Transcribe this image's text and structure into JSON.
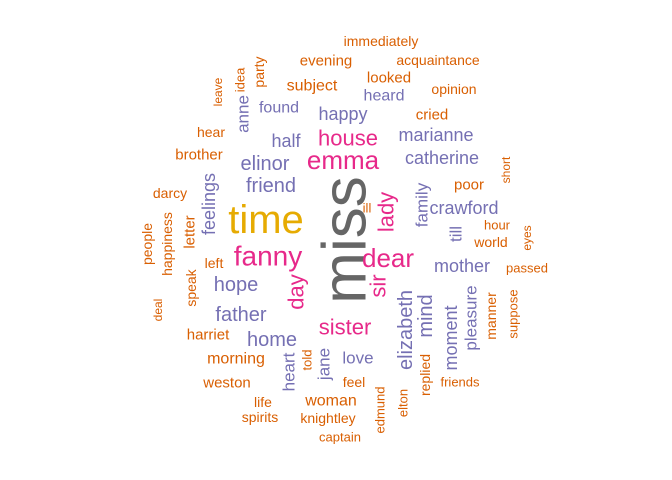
{
  "chart_data": {
    "type": "wordcloud",
    "title": "",
    "palette": {
      "gray": "#666666",
      "gold": "#E6AB02",
      "pink": "#E7298A",
      "purple": "#7570B3",
      "orange": "#D95F02"
    },
    "words": [
      {
        "text": "miss",
        "group": "gray"
      },
      {
        "text": "time",
        "group": "gold"
      },
      {
        "text": "fanny",
        "group": "pink"
      },
      {
        "text": "emma",
        "group": "pink"
      },
      {
        "text": "dear",
        "group": "pink"
      },
      {
        "text": "house",
        "group": "pink"
      },
      {
        "text": "lady",
        "group": "pink"
      },
      {
        "text": "sister",
        "group": "pink"
      },
      {
        "text": "day",
        "group": "pink"
      },
      {
        "text": "sir",
        "group": "pink"
      },
      {
        "text": "elinor",
        "group": "purple"
      },
      {
        "text": "catherine",
        "group": "purple"
      },
      {
        "text": "friend",
        "group": "purple"
      },
      {
        "text": "hope",
        "group": "purple"
      },
      {
        "text": "father",
        "group": "purple"
      },
      {
        "text": "home",
        "group": "purple"
      },
      {
        "text": "elizabeth",
        "group": "purple"
      },
      {
        "text": "mind",
        "group": "purple"
      },
      {
        "text": "mother",
        "group": "purple"
      },
      {
        "text": "crawford",
        "group": "purple"
      },
      {
        "text": "marianne",
        "group": "purple"
      },
      {
        "text": "happy",
        "group": "purple"
      },
      {
        "text": "half",
        "group": "purple"
      },
      {
        "text": "found",
        "group": "purple"
      },
      {
        "text": "heard",
        "group": "purple"
      },
      {
        "text": "family",
        "group": "purple"
      },
      {
        "text": "moment",
        "group": "purple"
      },
      {
        "text": "feelings",
        "group": "purple"
      },
      {
        "text": "love",
        "group": "purple"
      },
      {
        "text": "jane",
        "group": "purple"
      },
      {
        "text": "heart",
        "group": "purple"
      },
      {
        "text": "anne",
        "group": "purple"
      },
      {
        "text": "till",
        "group": "purple"
      },
      {
        "text": "pleasure",
        "group": "purple"
      },
      {
        "text": "immediately",
        "group": "orange"
      },
      {
        "text": "evening",
        "group": "orange"
      },
      {
        "text": "acquaintance",
        "group": "orange"
      },
      {
        "text": "party",
        "group": "orange"
      },
      {
        "text": "idea",
        "group": "orange"
      },
      {
        "text": "leave",
        "group": "orange"
      },
      {
        "text": "subject",
        "group": "orange"
      },
      {
        "text": "looked",
        "group": "orange"
      },
      {
        "text": "opinion",
        "group": "orange"
      },
      {
        "text": "cried",
        "group": "orange"
      },
      {
        "text": "hear",
        "group": "orange"
      },
      {
        "text": "brother",
        "group": "orange"
      },
      {
        "text": "short",
        "group": "orange"
      },
      {
        "text": "poor",
        "group": "orange"
      },
      {
        "text": "darcy",
        "group": "orange"
      },
      {
        "text": "ill",
        "group": "orange"
      },
      {
        "text": "hour",
        "group": "orange"
      },
      {
        "text": "people",
        "group": "orange"
      },
      {
        "text": "happiness",
        "group": "orange"
      },
      {
        "text": "letter",
        "group": "orange"
      },
      {
        "text": "world",
        "group": "orange"
      },
      {
        "text": "eyes",
        "group": "orange"
      },
      {
        "text": "left",
        "group": "orange"
      },
      {
        "text": "passed",
        "group": "orange"
      },
      {
        "text": "speak",
        "group": "orange"
      },
      {
        "text": "manner",
        "group": "orange"
      },
      {
        "text": "deal",
        "group": "orange"
      },
      {
        "text": "suppose",
        "group": "orange"
      },
      {
        "text": "harriet",
        "group": "orange"
      },
      {
        "text": "morning",
        "group": "orange"
      },
      {
        "text": "told",
        "group": "orange"
      },
      {
        "text": "replied",
        "group": "orange"
      },
      {
        "text": "weston",
        "group": "orange"
      },
      {
        "text": "feel",
        "group": "orange"
      },
      {
        "text": "friends",
        "group": "orange"
      },
      {
        "text": "life",
        "group": "orange"
      },
      {
        "text": "woman",
        "group": "orange"
      },
      {
        "text": "spirits",
        "group": "orange"
      },
      {
        "text": "knightley",
        "group": "orange"
      },
      {
        "text": "edmund",
        "group": "orange"
      },
      {
        "text": "elton",
        "group": "orange"
      },
      {
        "text": "captain",
        "group": "orange"
      }
    ]
  }
}
